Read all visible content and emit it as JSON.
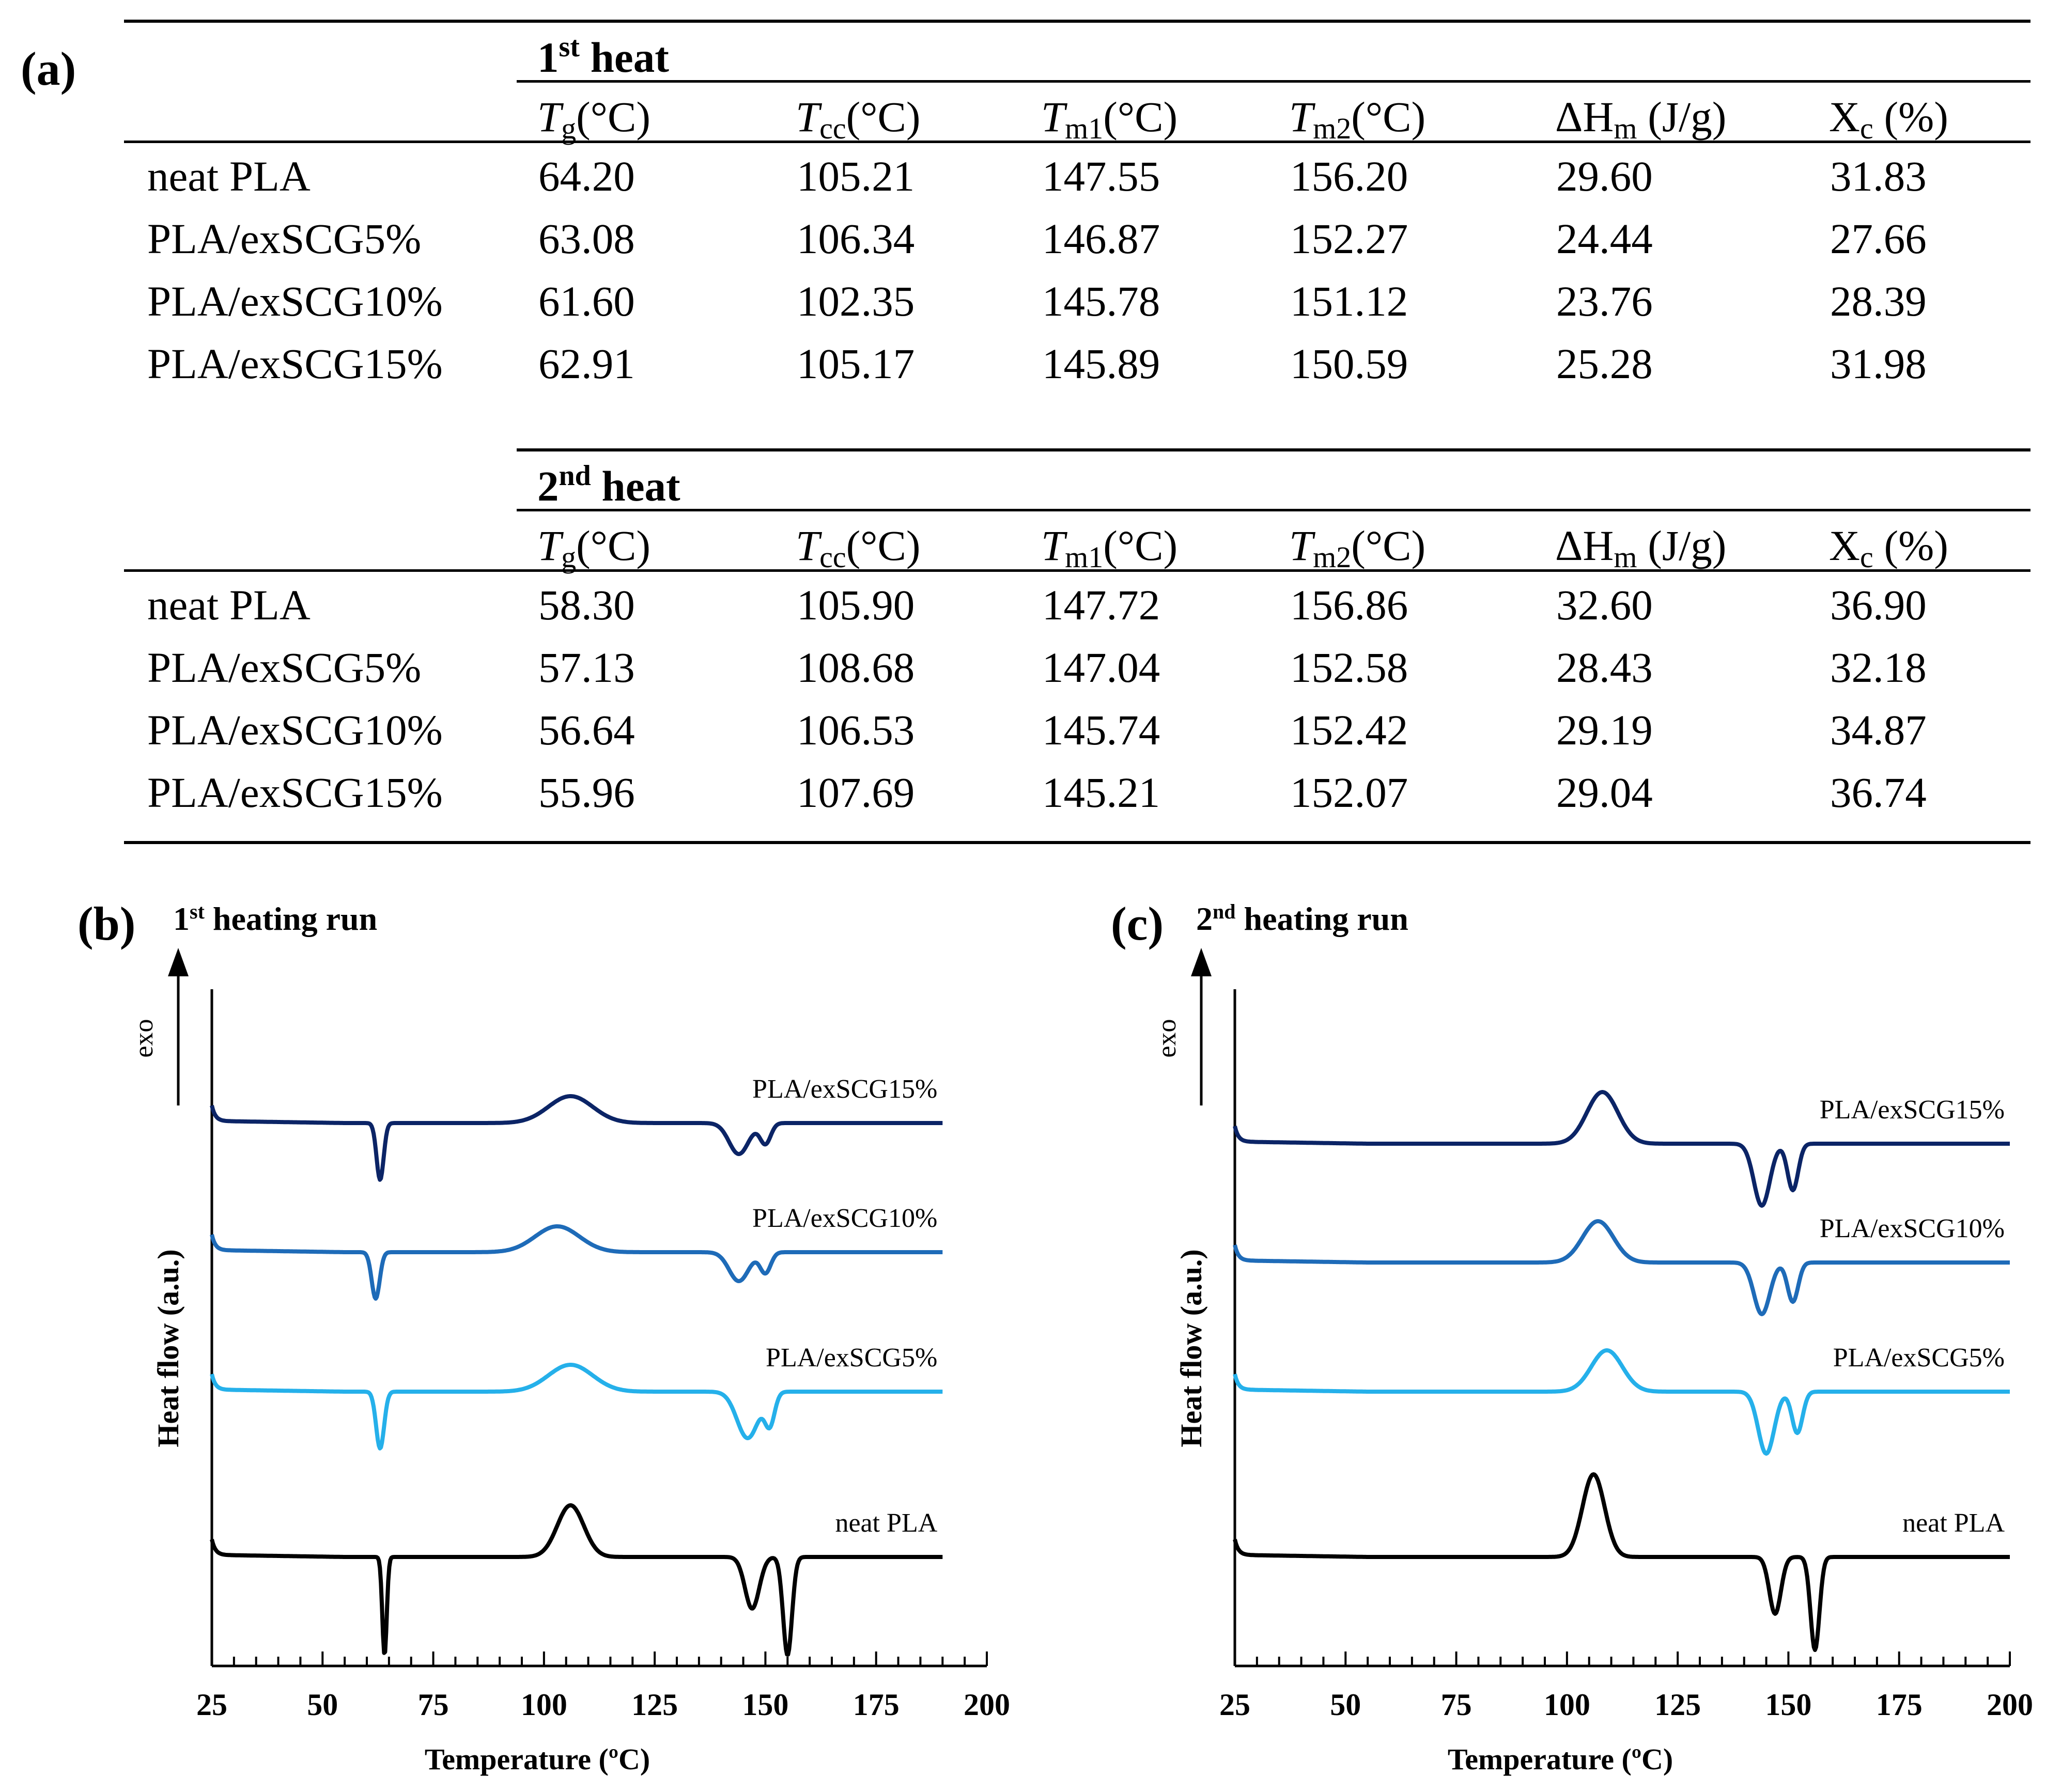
{
  "panel_labels": {
    "a": "(a)",
    "b": "(b)",
    "c": "(c)"
  },
  "table": {
    "sections": [
      {
        "title_sup": "st",
        "title_num": "1",
        "title_rest": " heat",
        "rows": [
          {
            "name": "neat PLA",
            "values": [
              "64.20",
              "105.21",
              "147.55",
              "156.20",
              "29.60",
              "31.83"
            ]
          },
          {
            "name": "PLA/exSCG5%",
            "values": [
              "63.08",
              "106.34",
              "146.87",
              "152.27",
              "24.44",
              "27.66"
            ]
          },
          {
            "name": "PLA/exSCG10%",
            "values": [
              "61.60",
              "102.35",
              "145.78",
              "151.12",
              "23.76",
              "28.39"
            ]
          },
          {
            "name": "PLA/exSCG15%",
            "values": [
              "62.91",
              "105.17",
              "145.89",
              "150.59",
              "25.28",
              "31.98"
            ]
          }
        ]
      },
      {
        "title_sup": "nd",
        "title_num": "2",
        "title_rest": " heat",
        "rows": [
          {
            "name": "neat PLA",
            "values": [
              "58.30",
              "105.90",
              "147.72",
              "156.86",
              "32.60",
              "36.90"
            ]
          },
          {
            "name": "PLA/exSCG5%",
            "values": [
              "57.13",
              "108.68",
              "147.04",
              "152.58",
              "28.43",
              "32.18"
            ]
          },
          {
            "name": "PLA/exSCG10%",
            "values": [
              "56.64",
              "106.53",
              "145.74",
              "152.42",
              "29.19",
              "34.87"
            ]
          },
          {
            "name": "PLA/exSCG15%",
            "values": [
              "55.96",
              "107.69",
              "145.21",
              "152.07",
              "29.04",
              "36.74"
            ]
          }
        ]
      }
    ],
    "headers": [
      {
        "sym": "T",
        "sub": "g",
        "unit": "(°C)",
        "italic": true
      },
      {
        "sym": "T",
        "sub": "cc",
        "unit": "(°C)",
        "italic": true
      },
      {
        "sym": "T",
        "sub": "m1",
        "unit": "(°C)",
        "italic": true
      },
      {
        "sym": "T",
        "sub": "m2",
        "unit": "(°C)",
        "italic": true
      },
      {
        "sym": "ΔH",
        "sub": "m",
        "unit": " (J/g)",
        "italic": false
      },
      {
        "sym": "X",
        "sub": "c",
        "unit": " (%)",
        "italic": false
      }
    ]
  },
  "chart_data": [
    {
      "type": "line",
      "panel": "(b)",
      "title_num": "1",
      "title_sup": "st",
      "title_rest": " heating run",
      "xlabel": "Temperature (ºC)",
      "ylabel": "Heat flow (a.u.)",
      "arrow_label": "exo",
      "xlim": [
        25,
        200
      ],
      "xticks": [
        25,
        50,
        75,
        100,
        125,
        150,
        175,
        200
      ],
      "x_end": 190,
      "series": [
        {
          "name": "PLA/exSCG15%",
          "color": "#0b2466",
          "baseline": 4.2,
          "features": [
            [
              63,
              -0.55,
              0.8
            ],
            [
              106,
              0.26,
              5
            ],
            [
              144,
              -0.3,
              2.2
            ],
            [
              150,
              -0.2,
              1.2
            ]
          ]
        },
        {
          "name": "PLA/exSCG10%",
          "color": "#1e6bb8",
          "baseline": 2.95,
          "features": [
            [
              62,
              -0.45,
              0.9
            ],
            [
              103,
              0.25,
              5
            ],
            [
              144,
              -0.28,
              2.2
            ],
            [
              150,
              -0.2,
              1.2
            ]
          ]
        },
        {
          "name": "PLA/exSCG5%",
          "color": "#25b0ea",
          "baseline": 1.6,
          "features": [
            [
              63,
              -0.55,
              0.9
            ],
            [
              106,
              0.26,
              5
            ],
            [
              146,
              -0.45,
              2.4
            ],
            [
              151,
              -0.3,
              1.1
            ]
          ]
        },
        {
          "name": "neat PLA",
          "color": "#000000",
          "baseline": 0,
          "features": [
            [
              64,
              -0.95,
              0.5
            ],
            [
              106,
              0.5,
              3
            ],
            [
              147,
              -0.5,
              1.6
            ],
            [
              155,
              -0.95,
              1.0
            ]
          ]
        }
      ]
    },
    {
      "type": "line",
      "panel": "(c)",
      "title_num": "2",
      "title_sup": "nd",
      "title_rest": " heating run",
      "xlabel": "Temperature (ºC)",
      "ylabel": "Heat flow (a.u.)",
      "arrow_label": "exo",
      "xlim": [
        25,
        200
      ],
      "xticks": [
        25,
        50,
        75,
        100,
        125,
        150,
        175,
        200
      ],
      "x_end": 200,
      "series": [
        {
          "name": "PLA/exSCG15%",
          "color": "#0b2466",
          "baseline": 4.0,
          "features": [
            [
              108,
              0.5,
              3.5
            ],
            [
              144,
              -0.6,
              1.8
            ],
            [
              151,
              -0.45,
              1.2
            ]
          ]
        },
        {
          "name": "PLA/exSCG10%",
          "color": "#1e6bb8",
          "baseline": 2.85,
          "features": [
            [
              107,
              0.4,
              3.5
            ],
            [
              144,
              -0.5,
              1.8
            ],
            [
              151,
              -0.38,
              1.2
            ]
          ]
        },
        {
          "name": "PLA/exSCG5%",
          "color": "#25b0ea",
          "baseline": 1.6,
          "features": [
            [
              109,
              0.4,
              3.5
            ],
            [
              145,
              -0.6,
              1.8
            ],
            [
              152,
              -0.4,
              1.2
            ]
          ]
        },
        {
          "name": "neat PLA",
          "color": "#000000",
          "baseline": 0,
          "features": [
            [
              106,
              0.8,
              2.5
            ],
            [
              147,
              -0.55,
              1.3
            ],
            [
              156,
              -0.9,
              1.0
            ]
          ]
        }
      ]
    }
  ]
}
